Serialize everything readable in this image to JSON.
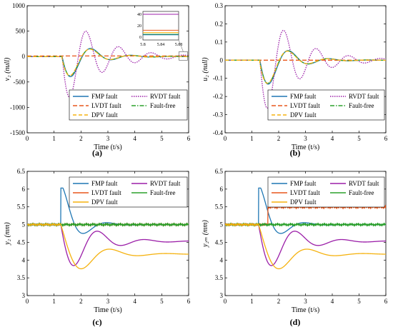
{
  "chart_data": [
    {
      "id": "a",
      "caption": "(a)",
      "type": "line",
      "xlabel": "Time (t/s)",
      "ylabel": "v₂ (null)",
      "xlim": [
        0,
        6
      ],
      "ylim": [
        -1500,
        1000
      ],
      "xticks": [
        0,
        1,
        2,
        3,
        4,
        5,
        6
      ],
      "yticks": [
        -1500,
        -1000,
        -500,
        0,
        500,
        1000
      ],
      "legend": "center-right",
      "series": [
        {
          "name": "FMP fault",
          "color": "#1f77b4",
          "dash": "",
          "model": {
            "kind": "osc",
            "t0": 1.3,
            "A": -600,
            "w": 4.2,
            "z": 0.35,
            "phase": 0.0
          }
        },
        {
          "name": "RVDT fault",
          "color": "#9b1fa8",
          "dash": "1.5,1.5",
          "model": {
            "kind": "osc",
            "t0": 1.3,
            "A": -1000,
            "w": 5.2,
            "z": 0.18,
            "phase": 0.0
          }
        },
        {
          "name": "LVDT fault",
          "color": "#e8561b",
          "dash": "6,3",
          "model": {
            "kind": "flat",
            "value": 12
          }
        },
        {
          "name": "Fault-free",
          "color": "#2ca02c",
          "dash": "6,2,1.5,2",
          "model": {
            "kind": "osc",
            "t0": 1.3,
            "A": -560,
            "w": 4.2,
            "z": 0.35,
            "phase": 0.05
          }
        },
        {
          "name": "DPV fault",
          "color": "#f5b20f",
          "dash": "5,3",
          "model": {
            "kind": "osc",
            "t0": 1.3,
            "A": -560,
            "w": 4.2,
            "z": 0.36,
            "phase": 0.1
          }
        }
      ],
      "inset": {
        "xlim": [
          5.8,
          5.88
        ],
        "ylim": [
          -5,
          45
        ],
        "xticks": [
          5.8,
          5.84,
          5.88
        ],
        "yticks": [
          0,
          20,
          40
        ],
        "lines": [
          {
            "color": "#9b1fa8",
            "value": 40
          },
          {
            "color": "#e8561b",
            "value": 12
          },
          {
            "color": "#f5b20f",
            "value": 8
          },
          {
            "color": "#2ca02c",
            "value": 5
          },
          {
            "color": "#1f77b4",
            "value": 4
          }
        ]
      }
    },
    {
      "id": "b",
      "caption": "(b)",
      "type": "line",
      "xlabel": "Time (t/s)",
      "ylabel": "u₂ (null)",
      "xlim": [
        0,
        6
      ],
      "ylim": [
        -0.4,
        0.3
      ],
      "xticks": [
        0,
        1,
        2,
        3,
        4,
        5,
        6
      ],
      "yticks": [
        -0.4,
        -0.3,
        -0.2,
        -0.1,
        0,
        0.1,
        0.2,
        0.3
      ],
      "legend": "center-right",
      "series": [
        {
          "name": "FMP fault",
          "color": "#1f77b4",
          "dash": "",
          "model": {
            "kind": "osc",
            "t0": 1.3,
            "A": -0.2,
            "w": 4.2,
            "z": 0.35,
            "phase": 0.0
          }
        },
        {
          "name": "RVDT fault",
          "color": "#9b1fa8",
          "dash": "1.5,1.5",
          "model": {
            "kind": "osc",
            "t0": 1.3,
            "A": -0.33,
            "w": 5.2,
            "z": 0.18,
            "phase": 0.0
          }
        },
        {
          "name": "LVDT fault",
          "color": "#e8561b",
          "dash": "6,3",
          "model": {
            "kind": "flat",
            "value": 0.0
          }
        },
        {
          "name": "Fault-free",
          "color": "#2ca02c",
          "dash": "6,2,1.5,2",
          "model": {
            "kind": "osc",
            "t0": 1.3,
            "A": -0.19,
            "w": 4.2,
            "z": 0.35,
            "phase": 0.05
          }
        },
        {
          "name": "DPV fault",
          "color": "#f5b20f",
          "dash": "5,3",
          "model": {
            "kind": "osc",
            "t0": 1.3,
            "A": -0.19,
            "w": 4.2,
            "z": 0.36,
            "phase": 0.1
          }
        }
      ]
    },
    {
      "id": "c",
      "caption": "(c)",
      "type": "line",
      "xlabel": "Time (t/s)",
      "ylabel": "y₂ (mm)",
      "xlim": [
        0,
        6
      ],
      "ylim": [
        3,
        6.5
      ],
      "xticks": [
        0,
        1,
        2,
        3,
        4,
        5,
        6
      ],
      "yticks": [
        3,
        3.5,
        4,
        4.5,
        5,
        5.5,
        6,
        6.5
      ],
      "legend": "top-right",
      "series": [
        {
          "name": "FMP fault",
          "color": "#1f77b4",
          "dash": "",
          "model": {
            "kind": "fmp",
            "base": 5.0,
            "t0": 1.25,
            "jump": 6.03,
            "final": 5.0
          }
        },
        {
          "name": "RVDT fault",
          "color": "#9b1fa8",
          "dash": "",
          "model": {
            "kind": "step",
            "base": 5.0,
            "t0": 1.25,
            "final": 4.53,
            "A": 1.05,
            "w": 3.6,
            "z": 0.28
          }
        },
        {
          "name": "LVDT fault",
          "color": "#e8561b",
          "dash": "",
          "model": {
            "kind": "noise",
            "value": 5.0,
            "amp": 0.02
          }
        },
        {
          "name": "Fault-free",
          "color": "#2ca02c",
          "dash": "",
          "model": {
            "kind": "noise",
            "value": 5.0,
            "amp": 0.02
          }
        },
        {
          "name": "DPV fault",
          "color": "#f5b20f",
          "dash": "",
          "model": {
            "kind": "step",
            "base": 5.0,
            "t0": 1.25,
            "final": 4.17,
            "A": 0.5,
            "w": 3.0,
            "z": 0.35
          }
        }
      ]
    },
    {
      "id": "d",
      "caption": "(d)",
      "type": "line",
      "xlabel": "Time (t/s)",
      "ylabel": "y₂ₘ (mm)",
      "xlim": [
        0,
        6
      ],
      "ylim": [
        3,
        6.5
      ],
      "xticks": [
        0,
        1,
        2,
        3,
        4,
        5,
        6
      ],
      "yticks": [
        3,
        3.5,
        4,
        4.5,
        5,
        5.5,
        6,
        6.5
      ],
      "legend": "top-right",
      "series": [
        {
          "name": "FMP fault",
          "color": "#1f77b4",
          "dash": "",
          "model": {
            "kind": "fmp",
            "base": 5.0,
            "t0": 1.25,
            "jump": 6.03,
            "final": 5.0
          }
        },
        {
          "name": "RVDT fault",
          "color": "#9b1fa8",
          "dash": "",
          "model": {
            "kind": "step",
            "base": 5.0,
            "t0": 1.25,
            "final": 4.53,
            "A": 1.05,
            "w": 3.6,
            "z": 0.28
          }
        },
        {
          "name": "LVDT fault",
          "color": "#e8561b",
          "dash": "",
          "model": {
            "kind": "lvdt",
            "base": 5.0,
            "t0": 1.6,
            "value": 5.5,
            "amp": 0.025
          }
        },
        {
          "name": "Fault-free",
          "color": "#2ca02c",
          "dash": "",
          "model": {
            "kind": "noise",
            "value": 5.0,
            "amp": 0.02
          }
        },
        {
          "name": "DPV fault",
          "color": "#f5b20f",
          "dash": "",
          "model": {
            "kind": "step",
            "base": 5.0,
            "t0": 1.25,
            "final": 4.17,
            "A": 0.5,
            "w": 3.0,
            "z": 0.35
          }
        }
      ]
    }
  ]
}
